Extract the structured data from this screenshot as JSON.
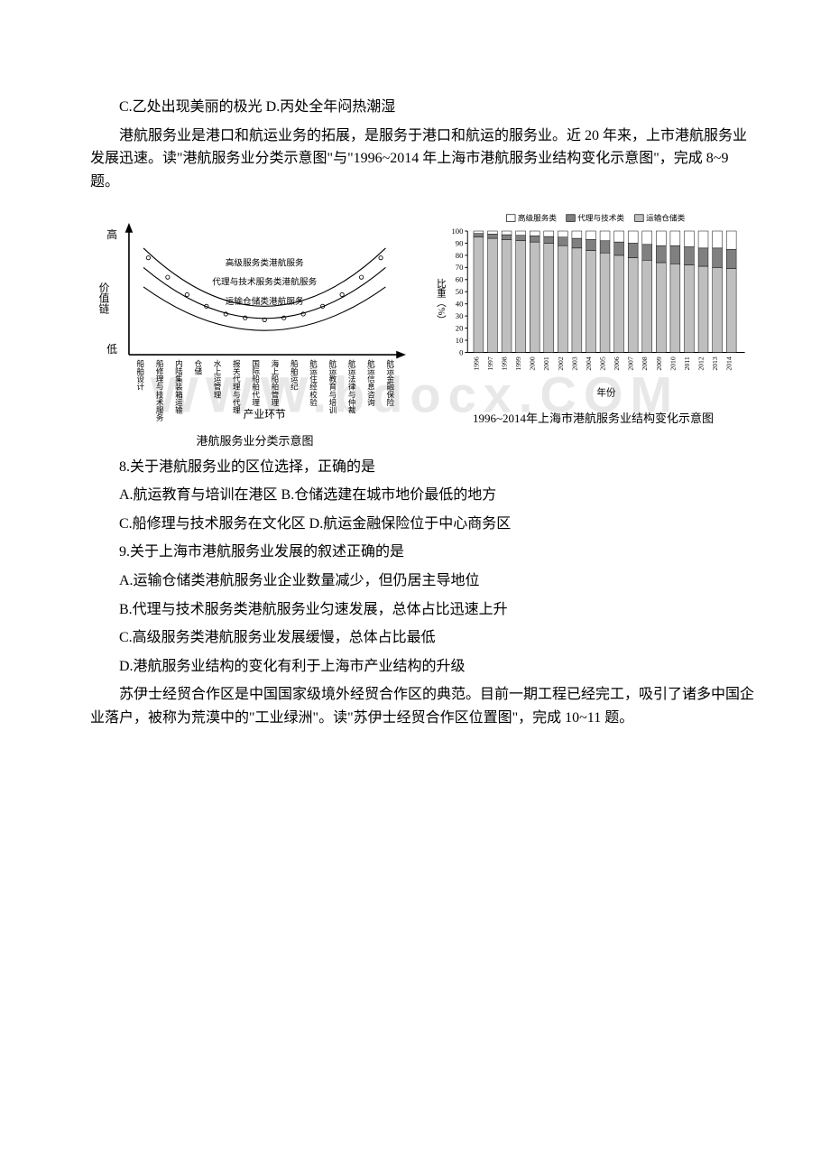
{
  "watermark": "WWW.bdocx.COM",
  "p1": "C.乙处出现美丽的极光 D.丙处全年闷热潮湿",
  "p2": "港航服务业是港口和航运业务的拓展，是服务于港口和航运的服务业。近 20 年来，上市港航服务业发展迅速。读\"港航服务业分类示意图\"与\"1996~2014 年上海市港航服务业结构变化示意图\"，完成 8~9 题。",
  "q8": "8.关于港航服务业的区位选择，正确的是",
  "q8a": "A.航运教育与培训在港区 B.仓储选建在城市地价最低的地方",
  "q8b": "C.船修理与技术服务在文化区 D.航运金融保险位于中心商务区",
  "q9": "9.关于上海市港航服务业发展的叙述正确的是",
  "q9a": "A.运输仓储类港航服务业企业数量减少，但仍居主导地位",
  "q9b": "B.代理与技术服务类港航服务业匀速发展，总体占比迅速上升",
  "q9c": "C.高级服务类港航服务业发展缓慢，总体占比最低",
  "q9d": "D.港航服务业结构的变化有利于上海市产业结构的升级",
  "p3": "苏伊士经贸合作区是中国国家级境外经贸合作区的典范。目前一期工程已经完工，吸引了诸多中国企业落户，被称为荒漠中的\"工业绿洲\"。读\"苏伊士经贸合作区位置图\"，完成 10~11 题。",
  "figures": {
    "left": {
      "y_axis_top": "高",
      "y_axis_bottom": "低",
      "y_axis_label": "价值链",
      "row1": "高级服务类港航服务",
      "row2": "代理与技术服务类港航服务",
      "row3": "运输仓储类港航服务",
      "x_categories": [
        "船舶设计",
        "船修理与技术服务",
        "内陆集装箱运输",
        "仓储",
        "水上运管理",
        "报关代理与代理",
        "国际船舶代理",
        "海上船舶管理",
        "船舶运纪",
        "航运住经校验",
        "航运教育与培训",
        "航运法律与仲裁",
        "航运信息咨询",
        "航运金融保险"
      ],
      "x_axis_label": "产业环节",
      "caption": "港航服务业分类示意图"
    },
    "right": {
      "legend": [
        "高级服务类",
        "代理与技术类",
        "运输仓储类"
      ],
      "y_axis_label": "比重（%）",
      "y_ticks": [
        0,
        10,
        20,
        30,
        40,
        50,
        60,
        70,
        80,
        90,
        100
      ],
      "x_ticks": [
        "1996",
        "1997",
        "1998",
        "1999",
        "2000",
        "2001",
        "2002",
        "2003",
        "2004",
        "2005",
        "2006",
        "2007",
        "2008",
        "2009",
        "2010",
        "2011",
        "2012",
        "2013",
        "2014"
      ],
      "x_axis_label": "年份",
      "caption": "1996~2014年上海市港航服务业结构变化示意图",
      "series_transport": [
        95,
        94,
        93,
        92,
        91,
        90,
        88,
        86,
        84,
        82,
        80,
        78,
        76,
        74,
        73,
        72,
        71,
        70,
        69
      ],
      "series_agent": [
        3,
        3.5,
        4,
        4.5,
        5,
        5.5,
        7,
        8,
        9,
        10,
        11,
        12,
        13,
        14,
        15,
        15,
        15,
        16,
        16
      ],
      "colors": {
        "transport": "#bfbfbf",
        "agent": "#808080",
        "advanced": "#ffffff",
        "border": "#000000",
        "grid": "#000000"
      }
    }
  }
}
